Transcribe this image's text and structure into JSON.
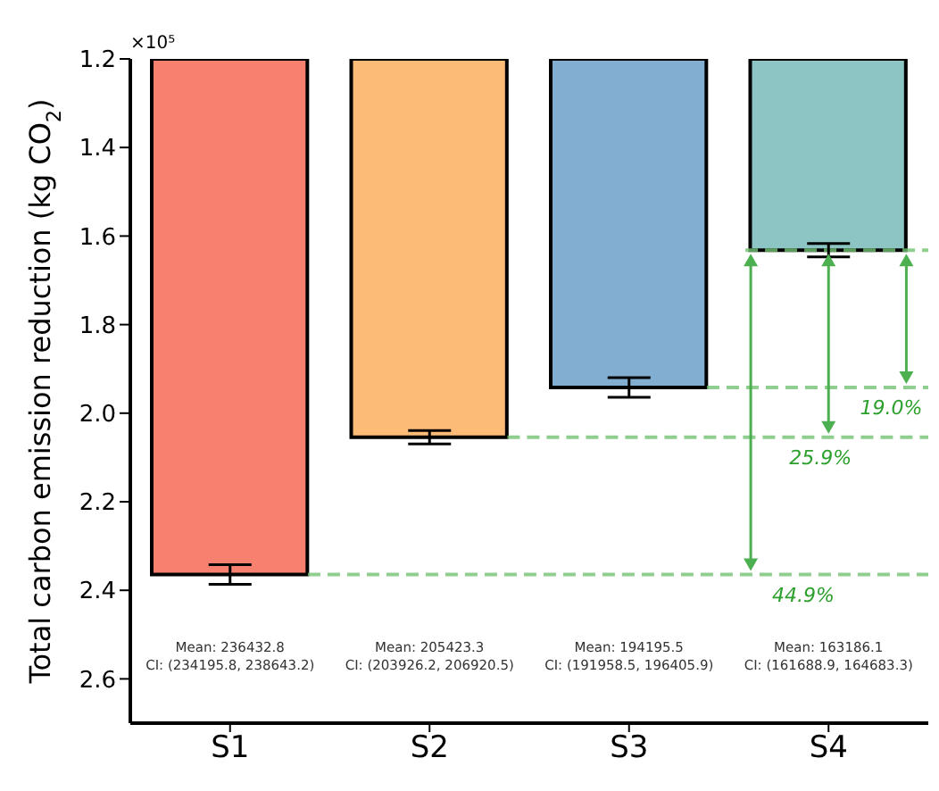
{
  "chart_data": {
    "type": "bar",
    "ylabel": "Total carbon emission reduction (kg CO$_{2}$)",
    "categories": [
      "S1",
      "S2",
      "S3",
      "S4"
    ],
    "values": [
      2.364328,
      2.054233,
      1.941955,
      1.631861
    ],
    "colors": [
      "#f8806f",
      "#fdbb78",
      "#82aed2",
      "#8dc4c4"
    ],
    "errors": [
      [
        2.341958,
        2.386432
      ],
      [
        2.039262,
        2.069205
      ],
      [
        1.919585,
        1.964059
      ],
      [
        1.616889,
        1.646833
      ]
    ],
    "ylim": [
      2.7,
      1.2
    ],
    "yticks": [
      1.2,
      1.4,
      1.6,
      1.8,
      {
        "value": 2,
        "label": "2.0"
      },
      2.2,
      2.4,
      2.6
    ],
    "ref_lines": [
      {
        "axis": "y",
        "value": 2.364328,
        "color": "#74c374",
        "line_style": "dashed"
      },
      {
        "axis": "y",
        "value": 2.054233,
        "color": "#74c374",
        "line_style": "dashed"
      },
      {
        "axis": "y",
        "value": 1.941955,
        "color": "#74c374",
        "line_style": "dashed"
      },
      {
        "axis": "y",
        "value": 1.631861,
        "color": "#74c374",
        "line_style": "dashed"
      }
    ],
    "annotations": [
      "×10⁵",
      "Mean: 236432.8\nCI: (234195.8, 238643.2)",
      "Mean: 205423.3\nCI: (203926.2, 206920.5)",
      "Mean: 194195.5\nCI: (191958.5, 196405.9)",
      "Mean: 163186.1\nCI: (161688.9, 164683.3)",
      {
        "text": "44.9%",
        "y": 2.364328
      },
      {
        "text": "25.9%",
        "y": 2.054233
      },
      {
        "text": "19.0%",
        "y": 1.941955
      }
    ]
  }
}
